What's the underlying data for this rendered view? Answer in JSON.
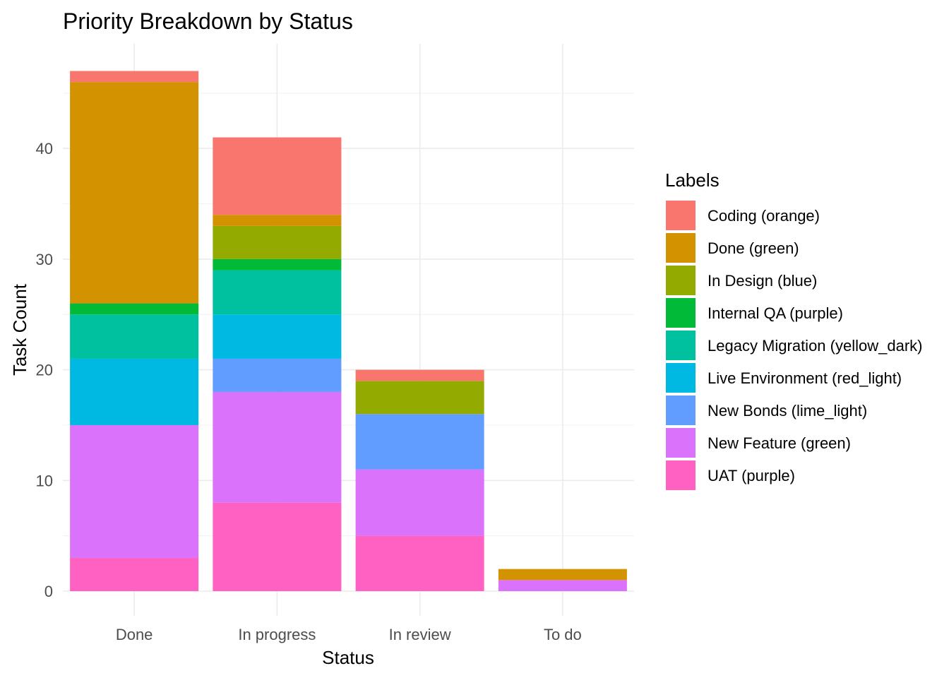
{
  "chart_data": {
    "type": "bar",
    "stacked": true,
    "title": "Priority Breakdown by Status",
    "xlabel": "Status",
    "ylabel": "Task Count",
    "ylim": [
      0,
      47
    ],
    "yticks": [
      0,
      10,
      20,
      30,
      40
    ],
    "grid": true,
    "legend_position": "right",
    "legend_title": "Labels",
    "categories": [
      "Done",
      "In progress",
      "In review",
      "To do"
    ],
    "series": [
      {
        "name": "Coding (orange)",
        "color": "#F8766D",
        "values": [
          1,
          7,
          1,
          0
        ]
      },
      {
        "name": "Done (green)",
        "color": "#D39200",
        "values": [
          20,
          1,
          0,
          1
        ]
      },
      {
        "name": "In Design (blue)",
        "color": "#93AA00",
        "values": [
          0,
          3,
          3,
          0
        ]
      },
      {
        "name": "Internal QA (purple)",
        "color": "#00BA38",
        "values": [
          1,
          1,
          0,
          0
        ]
      },
      {
        "name": "Legacy Migration (yellow_dark)",
        "color": "#00C19F",
        "values": [
          4,
          4,
          0,
          0
        ]
      },
      {
        "name": "Live Environment (red_light)",
        "color": "#00B9E3",
        "values": [
          6,
          4,
          0,
          0
        ]
      },
      {
        "name": "New Bonds (lime_light)",
        "color": "#619CFF",
        "values": [
          0,
          3,
          5,
          0
        ]
      },
      {
        "name": "New Feature (green)",
        "color": "#DB72FB",
        "values": [
          12,
          10,
          6,
          1
        ]
      },
      {
        "name": "UAT (purple)",
        "color": "#FF61C3",
        "values": [
          3,
          8,
          5,
          0
        ]
      }
    ]
  }
}
